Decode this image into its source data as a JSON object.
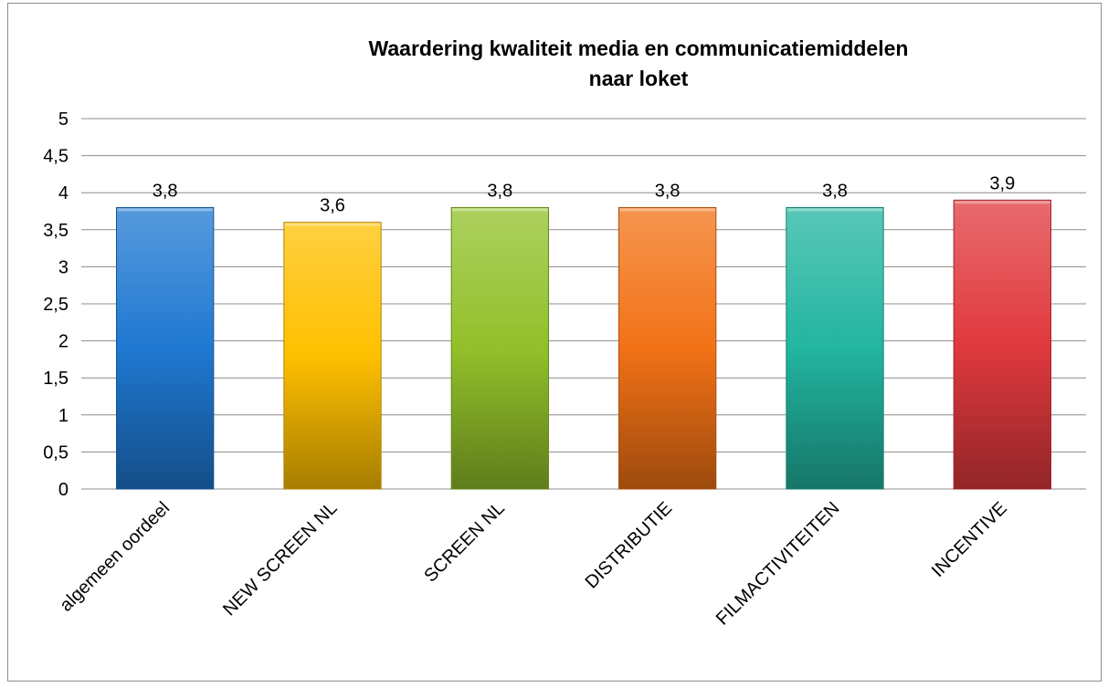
{
  "chart_data": {
    "type": "bar",
    "title": "Waardering kwaliteit media en communicatiemiddelen naar loket",
    "title_lines": [
      "Waardering kwaliteit media en communicatiemiddelen",
      "naar loket"
    ],
    "categories": [
      "algemeen oordeel",
      "NEW SCREEN NL",
      "SCREEN NL",
      "DISTRIBUTIE",
      "FILMACTIVITEITEN",
      "INCENTIVE"
    ],
    "values": [
      3.8,
      3.6,
      3.8,
      3.8,
      3.8,
      3.9
    ],
    "value_labels": [
      "3,8",
      "3,6",
      "3,8",
      "3,8",
      "3,8",
      "3,9"
    ],
    "ylim": [
      0,
      5
    ],
    "yticks": [
      0,
      0.5,
      1,
      1.5,
      2,
      2.5,
      3,
      3.5,
      4,
      4.5,
      5
    ],
    "ytick_labels": [
      "0",
      "0,5",
      "1",
      "1,5",
      "2",
      "2,5",
      "3",
      "3,5",
      "4",
      "4,5",
      "5"
    ],
    "grid": true,
    "legend": "none",
    "bar_colors": [
      "#1f78d1",
      "#ffc000",
      "#92c02a",
      "#f27216",
      "#22b5a0",
      "#e0393e"
    ]
  }
}
